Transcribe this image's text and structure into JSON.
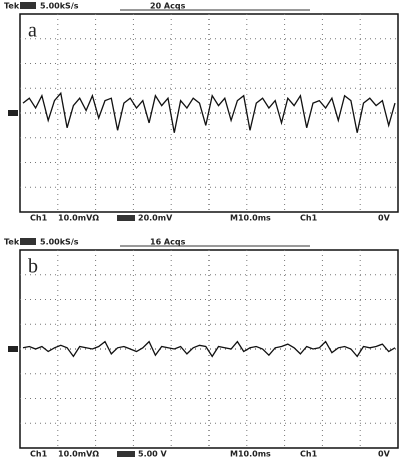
{
  "panels": [
    {
      "label": "a",
      "header": [
        "Tek",
        "5.00kS/s",
        "20 Acqs"
      ],
      "footer": [
        "Ch1",
        "10.0mVΩ",
        "20.0mV",
        "M10.0ms",
        "Ch1",
        "0V"
      ],
      "trace": [
        0.4,
        0.6,
        0.2,
        0.7,
        -0.3,
        0.5,
        0.8,
        -0.6,
        0.3,
        0.6,
        0.1,
        0.7,
        -0.2,
        0.5,
        0.6,
        -0.7,
        0.4,
        0.6,
        0.2,
        0.5,
        -0.4,
        0.7,
        0.3,
        0.6,
        -0.8,
        0.5,
        0.2,
        0.6,
        0.4,
        -0.5,
        0.7,
        0.3,
        0.6,
        -0.3,
        0.5,
        0.7,
        -0.7,
        0.4,
        0.6,
        0.2,
        0.5,
        -0.4,
        0.6,
        0.3,
        0.7,
        -0.6,
        0.4,
        0.5,
        0.2,
        0.6,
        -0.3,
        0.7,
        0.5,
        -0.8,
        0.4,
        0.6,
        0.3,
        0.5,
        -0.5,
        0.4
      ]
    },
    {
      "label": "b",
      "header": [
        "Tek",
        "5.00kS/s",
        "16 Acqs"
      ],
      "footer": [
        "Ch1",
        "10.0mVΩ",
        "5.00 V",
        "M10.0ms",
        "Ch1",
        "0V"
      ],
      "trace": [
        0.05,
        0.1,
        0,
        0.1,
        -0.1,
        0.05,
        0.15,
        0.05,
        -0.3,
        0.1,
        0.05,
        0,
        0.1,
        0.3,
        -0.2,
        0.05,
        0.1,
        0,
        -0.1,
        0.05,
        0.3,
        -0.25,
        0.1,
        0.05,
        0,
        0.1,
        -0.2,
        0.05,
        0.15,
        0.1,
        -0.3,
        0.1,
        0.05,
        0,
        0.3,
        -0.1,
        0.05,
        0.1,
        0,
        -0.25,
        0.05,
        0.1,
        0.2,
        0.05,
        -0.2,
        0.1,
        0,
        0.05,
        0.3,
        -0.15,
        0.05,
        0.1,
        0,
        -0.3,
        0.1,
        0.05,
        0.1,
        0.2,
        -0.1,
        0.05
      ]
    }
  ]
}
